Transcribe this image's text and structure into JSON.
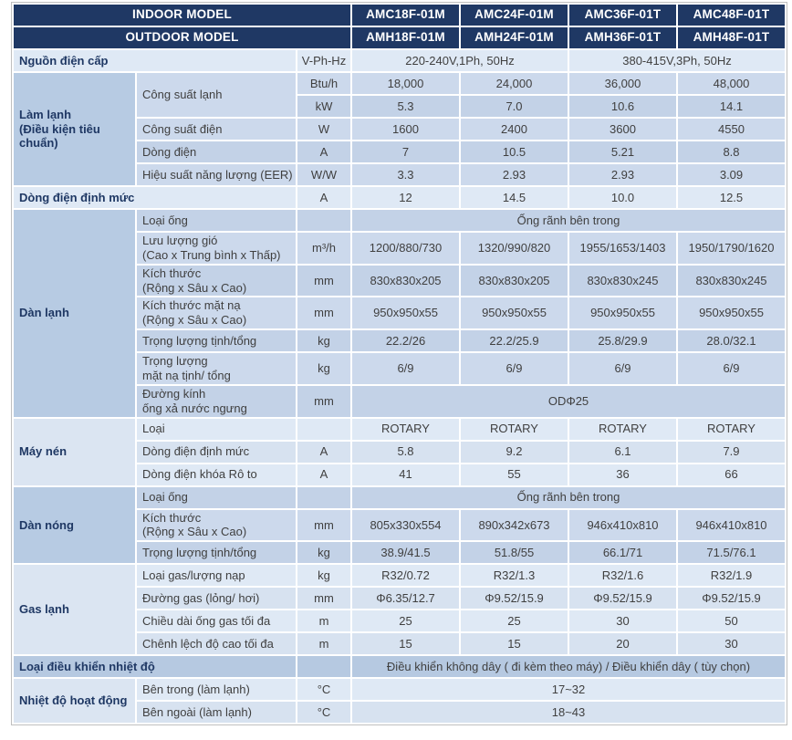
{
  "colors": {
    "header_bg": "#1f3864",
    "header_text": "#ffffff",
    "label_text": "#1f3864",
    "value_text": "#404040",
    "dark_a": "#ccd9ec",
    "dark_b": "#c3d2e7",
    "dark_section": "#b7cbe3",
    "light_a": "#dfe9f5",
    "light_b": "#d7e2f0",
    "light_section": "#dbe5f2",
    "medium": "#b6c9e1",
    "table_border": "#bfbfbf",
    "page_bg": "#ffffff"
  },
  "table": {
    "indoor_models": [
      "AMC18F-01M",
      "AMC24F-01M",
      "AMC36F-01T",
      "AMC48F-01T"
    ],
    "outdoor_models": [
      "AMH18F-01M",
      "AMH24F-01M",
      "AMH36F-01T",
      "AMH48F-01T"
    ],
    "rows": [
      {
        "band": "navy",
        "h": "h1",
        "cells": [
          {
            "t": "INDOOR MODEL",
            "k": "hl",
            "cs": 3
          },
          {
            "t": "AMC18F-01M",
            "k": "hm"
          },
          {
            "t": "AMC24F-01M",
            "k": "hm"
          },
          {
            "t": "AMC36F-01T",
            "k": "hm"
          },
          {
            "t": "AMC48F-01T",
            "k": "hm"
          }
        ]
      },
      {
        "band": "navy",
        "h": "h1",
        "cells": [
          {
            "t": "OUTDOOR MODEL",
            "k": "hl",
            "cs": 3
          },
          {
            "t": "AMH18F-01M",
            "k": "hm"
          },
          {
            "t": "AMH24F-01M",
            "k": "hm"
          },
          {
            "t": "AMH36F-01T",
            "k": "hm"
          },
          {
            "t": "AMH48F-01T",
            "k": "hm"
          }
        ]
      },
      {
        "band": "light",
        "shade": "a",
        "h": "h1",
        "cells": [
          {
            "t": "Nguồn điện cấp",
            "k": "lbl",
            "cs": 2
          },
          {
            "t": "V-Ph-Hz",
            "k": "unit"
          },
          {
            "t": "220-240V,1Ph, 50Hz",
            "k": "val",
            "cs": 2
          },
          {
            "t": "380-415V,3Ph, 50Hz",
            "k": "val",
            "cs": 2
          }
        ]
      },
      {
        "band": "dark",
        "shade": "a",
        "h": "h1",
        "cells": [
          {
            "t": "Làm lạnh\n(Điều kiện tiêu chuẩn)",
            "k": "sec",
            "rs": 5
          },
          {
            "t": "Công suất lạnh",
            "k": "sub",
            "rs": 2
          },
          {
            "t": "Btu/h",
            "k": "unit"
          },
          {
            "t": "18,000",
            "k": "val"
          },
          {
            "t": "24,000",
            "k": "val"
          },
          {
            "t": "36,000",
            "k": "val"
          },
          {
            "t": "48,000",
            "k": "val"
          }
        ]
      },
      {
        "band": "dark",
        "shade": "b",
        "h": "h1",
        "cells": [
          {
            "t": "kW",
            "k": "unit"
          },
          {
            "t": "5.3",
            "k": "val"
          },
          {
            "t": "7.0",
            "k": "val"
          },
          {
            "t": "10.6",
            "k": "val"
          },
          {
            "t": "14.1",
            "k": "val"
          }
        ]
      },
      {
        "band": "dark",
        "shade": "a",
        "h": "h1",
        "cells": [
          {
            "t": "Công suất điện",
            "k": "sub"
          },
          {
            "t": "W",
            "k": "unit"
          },
          {
            "t": "1600",
            "k": "val"
          },
          {
            "t": "2400",
            "k": "val"
          },
          {
            "t": "3600",
            "k": "val"
          },
          {
            "t": "4550",
            "k": "val"
          }
        ]
      },
      {
        "band": "dark",
        "shade": "b",
        "h": "h1",
        "cells": [
          {
            "t": "Dòng điện",
            "k": "sub"
          },
          {
            "t": "A",
            "k": "unit"
          },
          {
            "t": "7",
            "k": "val"
          },
          {
            "t": "10.5",
            "k": "val"
          },
          {
            "t": "5.21",
            "k": "val"
          },
          {
            "t": "8.8",
            "k": "val"
          }
        ]
      },
      {
        "band": "dark",
        "shade": "a",
        "h": "h1",
        "cells": [
          {
            "t": "Hiệu suất năng lượng (EER)",
            "k": "sub"
          },
          {
            "t": "W/W",
            "k": "unit"
          },
          {
            "t": "3.3",
            "k": "val"
          },
          {
            "t": "2.93",
            "k": "val"
          },
          {
            "t": "2.93",
            "k": "val"
          },
          {
            "t": "3.09",
            "k": "val"
          }
        ]
      },
      {
        "band": "light",
        "shade": "a",
        "h": "h1",
        "cells": [
          {
            "t": "Dòng điện định mức",
            "k": "lbl",
            "cs": 2
          },
          {
            "t": "A",
            "k": "unit"
          },
          {
            "t": "12",
            "k": "val"
          },
          {
            "t": "14.5",
            "k": "val"
          },
          {
            "t": "10.0",
            "k": "val"
          },
          {
            "t": "12.5",
            "k": "val"
          }
        ]
      },
      {
        "band": "dark",
        "shade": "b",
        "h": "h1",
        "cells": [
          {
            "t": "Dàn lạnh",
            "k": "sec",
            "rs": 7
          },
          {
            "t": "Loại ống",
            "k": "sub"
          },
          {
            "t": "",
            "k": "unit"
          },
          {
            "t": "Ống rãnh bên trong",
            "k": "val",
            "cs": 4
          }
        ]
      },
      {
        "band": "dark",
        "shade": "a",
        "h": "h2",
        "cells": [
          {
            "t": "Lưu lượng gió\n(Cao x Trung bình x Thấp)",
            "k": "sub"
          },
          {
            "t": "m³/h",
            "k": "unit"
          },
          {
            "t": "1200/880/730",
            "k": "val"
          },
          {
            "t": "1320/990/820",
            "k": "val"
          },
          {
            "t": "1955/1653/1403",
            "k": "val"
          },
          {
            "t": "1950/1790/1620",
            "k": "val"
          }
        ]
      },
      {
        "band": "dark",
        "shade": "b",
        "h": "h2",
        "cells": [
          {
            "t": "Kích thước\n(Rộng x Sâu x Cao)",
            "k": "sub"
          },
          {
            "t": "mm",
            "k": "unit"
          },
          {
            "t": "830x830x205",
            "k": "val"
          },
          {
            "t": "830x830x205",
            "k": "val"
          },
          {
            "t": "830x830x245",
            "k": "val"
          },
          {
            "t": "830x830x245",
            "k": "val"
          }
        ]
      },
      {
        "band": "dark",
        "shade": "a",
        "h": "h2",
        "cells": [
          {
            "t": "Kích thước mặt nạ\n(Rộng x Sâu x Cao)",
            "k": "sub"
          },
          {
            "t": "mm",
            "k": "unit"
          },
          {
            "t": "950x950x55",
            "k": "val"
          },
          {
            "t": "950x950x55",
            "k": "val"
          },
          {
            "t": "950x950x55",
            "k": "val"
          },
          {
            "t": "950x950x55",
            "k": "val"
          }
        ]
      },
      {
        "band": "dark",
        "shade": "b",
        "h": "h1",
        "cells": [
          {
            "t": "Trọng lượng tịnh/tổng",
            "k": "sub"
          },
          {
            "t": "kg",
            "k": "unit"
          },
          {
            "t": "22.2/26",
            "k": "val"
          },
          {
            "t": "22.2/25.9",
            "k": "val"
          },
          {
            "t": "25.8/29.9",
            "k": "val"
          },
          {
            "t": "28.0/32.1",
            "k": "val"
          }
        ]
      },
      {
        "band": "dark",
        "shade": "a",
        "h": "h2",
        "cells": [
          {
            "t": "Trọng lượng\nmặt nạ tịnh/ tổng",
            "k": "sub"
          },
          {
            "t": "kg",
            "k": "unit"
          },
          {
            "t": "6/9",
            "k": "val"
          },
          {
            "t": "6/9",
            "k": "val"
          },
          {
            "t": "6/9",
            "k": "val"
          },
          {
            "t": "6/9",
            "k": "val"
          }
        ]
      },
      {
        "band": "dark",
        "shade": "b",
        "h": "h2",
        "cells": [
          {
            "t": "Đường kính\nống xả nước ngưng",
            "k": "sub"
          },
          {
            "t": "mm",
            "k": "unit"
          },
          {
            "t": "ODΦ25",
            "k": "val",
            "cs": 4
          }
        ]
      },
      {
        "band": "light",
        "shade": "a",
        "h": "h1",
        "cells": [
          {
            "t": "Máy nén",
            "k": "sec",
            "rs": 3
          },
          {
            "t": "Loại",
            "k": "sub"
          },
          {
            "t": "",
            "k": "unit"
          },
          {
            "t": "ROTARY",
            "k": "val"
          },
          {
            "t": "ROTARY",
            "k": "val"
          },
          {
            "t": "ROTARY",
            "k": "val"
          },
          {
            "t": "ROTARY",
            "k": "val"
          }
        ]
      },
      {
        "band": "light",
        "shade": "b",
        "h": "h1",
        "cells": [
          {
            "t": "Dòng điện định mức",
            "k": "sub"
          },
          {
            "t": "A",
            "k": "unit"
          },
          {
            "t": "5.8",
            "k": "val"
          },
          {
            "t": "9.2",
            "k": "val"
          },
          {
            "t": "6.1",
            "k": "val"
          },
          {
            "t": "7.9",
            "k": "val"
          }
        ]
      },
      {
        "band": "light",
        "shade": "a",
        "h": "h1",
        "cells": [
          {
            "t": "Dòng điện khóa Rô to",
            "k": "sub"
          },
          {
            "t": "A",
            "k": "unit"
          },
          {
            "t": "41",
            "k": "val"
          },
          {
            "t": "55",
            "k": "val"
          },
          {
            "t": "36",
            "k": "val"
          },
          {
            "t": "66",
            "k": "val"
          }
        ]
      },
      {
        "band": "dark",
        "shade": "b",
        "h": "h1",
        "cells": [
          {
            "t": "Dàn nóng",
            "k": "sec",
            "rs": 3
          },
          {
            "t": "Loại ống",
            "k": "sub"
          },
          {
            "t": "",
            "k": "unit"
          },
          {
            "t": "Ống rãnh bên trong",
            "k": "val",
            "cs": 4
          }
        ]
      },
      {
        "band": "dark",
        "shade": "a",
        "h": "h2",
        "cells": [
          {
            "t": "Kích thước\n(Rộng x Sâu x Cao)",
            "k": "sub"
          },
          {
            "t": "mm",
            "k": "unit"
          },
          {
            "t": "805x330x554",
            "k": "val"
          },
          {
            "t": "890x342x673",
            "k": "val"
          },
          {
            "t": "946x410x810",
            "k": "val"
          },
          {
            "t": "946x410x810",
            "k": "val"
          }
        ]
      },
      {
        "band": "dark",
        "shade": "b",
        "h": "h1",
        "cells": [
          {
            "t": "Trọng lượng tịnh/tổng",
            "k": "sub"
          },
          {
            "t": "kg",
            "k": "unit"
          },
          {
            "t": "38.9/41.5",
            "k": "val"
          },
          {
            "t": "51.8/55",
            "k": "val"
          },
          {
            "t": "66.1/71",
            "k": "val"
          },
          {
            "t": "71.5/76.1",
            "k": "val"
          }
        ]
      },
      {
        "band": "light",
        "shade": "a",
        "h": "h1",
        "cells": [
          {
            "t": "Gas lạnh",
            "k": "sec",
            "rs": 4
          },
          {
            "t": "Loại gas/lượng nạp",
            "k": "sub"
          },
          {
            "t": "kg",
            "k": "unit"
          },
          {
            "t": "R32/0.72",
            "k": "val"
          },
          {
            "t": "R32/1.3",
            "k": "val"
          },
          {
            "t": "R32/1.6",
            "k": "val"
          },
          {
            "t": "R32/1.9",
            "k": "val"
          }
        ]
      },
      {
        "band": "light",
        "shade": "b",
        "h": "h1",
        "cells": [
          {
            "t": "Đường gas (lỏng/ hơi)",
            "k": "sub"
          },
          {
            "t": "mm",
            "k": "unit"
          },
          {
            "t": "Φ6.35/12.7",
            "k": "val"
          },
          {
            "t": "Φ9.52/15.9",
            "k": "val"
          },
          {
            "t": "Φ9.52/15.9",
            "k": "val"
          },
          {
            "t": "Φ9.52/15.9",
            "k": "val"
          }
        ]
      },
      {
        "band": "light",
        "shade": "a",
        "h": "h1",
        "cells": [
          {
            "t": "Chiều dài ống gas tối đa",
            "k": "sub"
          },
          {
            "t": "m",
            "k": "unit"
          },
          {
            "t": "25",
            "k": "val"
          },
          {
            "t": "25",
            "k": "val"
          },
          {
            "t": "30",
            "k": "val"
          },
          {
            "t": "50",
            "k": "val"
          }
        ]
      },
      {
        "band": "light",
        "shade": "b",
        "h": "h1",
        "cells": [
          {
            "t": "Chênh lệch độ cao tối đa",
            "k": "sub"
          },
          {
            "t": "m",
            "k": "unit"
          },
          {
            "t": "15",
            "k": "val"
          },
          {
            "t": "15",
            "k": "val"
          },
          {
            "t": "20",
            "k": "val"
          },
          {
            "t": "30",
            "k": "val"
          }
        ]
      },
      {
        "band": "medium",
        "h": "h1",
        "cells": [
          {
            "t": "Loại điều khiển nhiệt độ",
            "k": "lbl",
            "cs": 2
          },
          {
            "t": "",
            "k": "unit"
          },
          {
            "t": "Điều khiển không dây ( đi kèm theo máy) / Điều khiển dây ( tùy chọn)",
            "k": "val",
            "cs": 4
          }
        ]
      },
      {
        "band": "light",
        "shade": "a",
        "h": "h1",
        "cells": [
          {
            "t": "Nhiệt độ hoạt động",
            "k": "sec",
            "rs": 2
          },
          {
            "t": "Bên trong (làm lạnh)",
            "k": "sub"
          },
          {
            "t": "°C",
            "k": "unit"
          },
          {
            "t": "17~32",
            "k": "val",
            "cs": 4
          }
        ]
      },
      {
        "band": "light",
        "shade": "b",
        "h": "h1",
        "cells": [
          {
            "t": "Bên ngoài (làm lạnh)",
            "k": "sub"
          },
          {
            "t": "°C",
            "k": "unit"
          },
          {
            "t": "18~43",
            "k": "val",
            "cs": 4
          }
        ]
      }
    ]
  }
}
